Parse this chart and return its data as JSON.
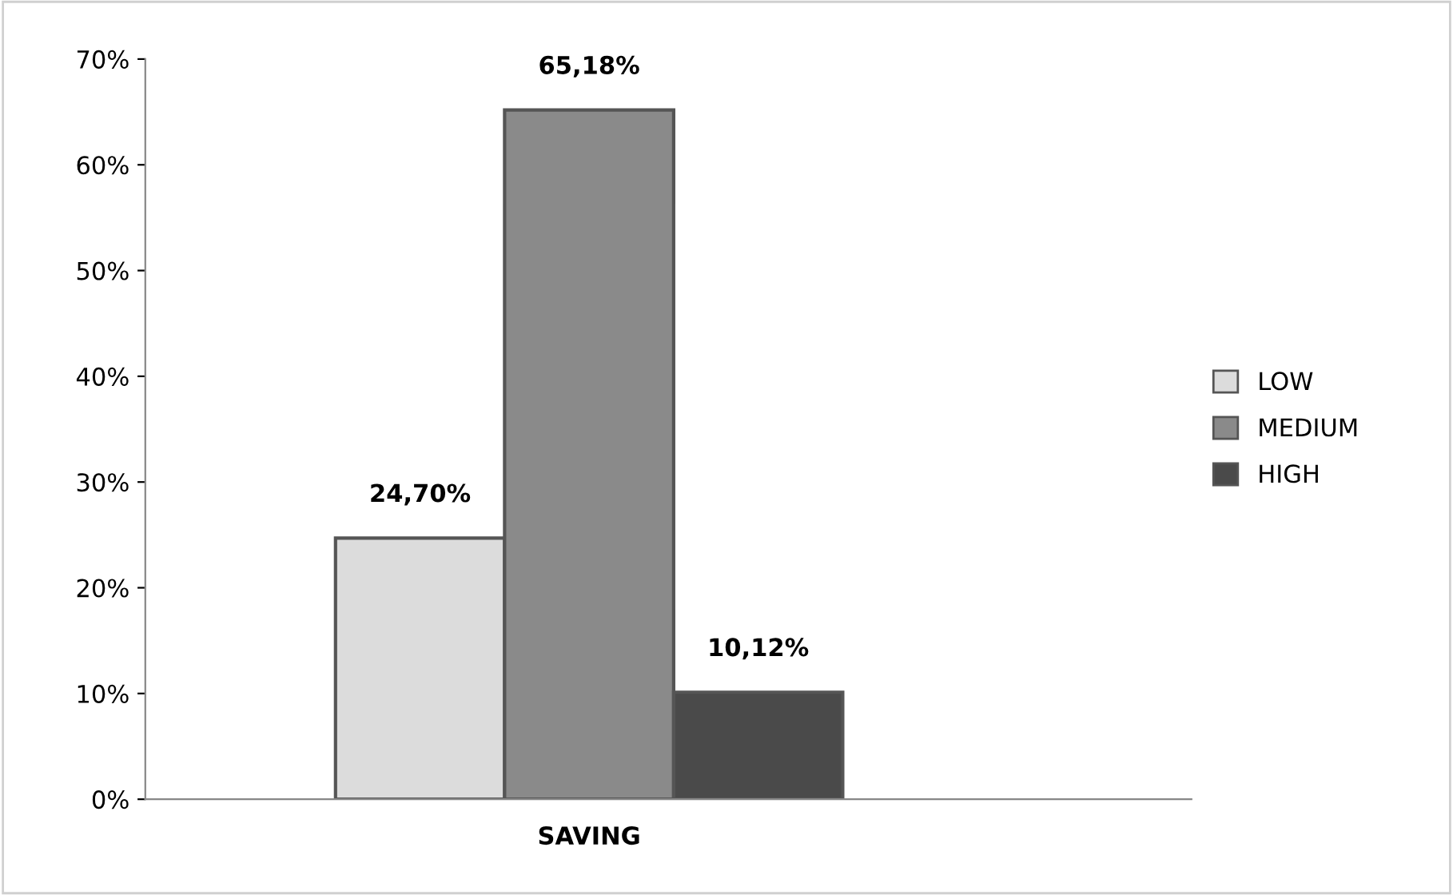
{
  "chart_data": {
    "type": "bar",
    "categories": [
      "SAVING"
    ],
    "series": [
      {
        "name": "LOW",
        "color": "#dcdcdc",
        "values": [
          24.7
        ],
        "value_labels": [
          "24,70%"
        ]
      },
      {
        "name": "MEDIUM",
        "color": "#8a8a8a",
        "values": [
          65.18
        ],
        "value_labels": [
          "65,18%"
        ]
      },
      {
        "name": "HIGH",
        "color": "#4a4a4a",
        "values": [
          10.12
        ],
        "value_labels": [
          "10,12%"
        ]
      }
    ],
    "ylim": [
      0,
      70
    ],
    "yticks": [
      {
        "value": 0,
        "label": "0%"
      },
      {
        "value": 10,
        "label": "10%"
      },
      {
        "value": 20,
        "label": "20%"
      },
      {
        "value": 30,
        "label": "30%"
      },
      {
        "value": 40,
        "label": "40%"
      },
      {
        "value": 50,
        "label": "50%"
      },
      {
        "value": 60,
        "label": "60%"
      },
      {
        "value": 70,
        "label": "70%"
      }
    ],
    "grid": false,
    "legend": "right"
  }
}
